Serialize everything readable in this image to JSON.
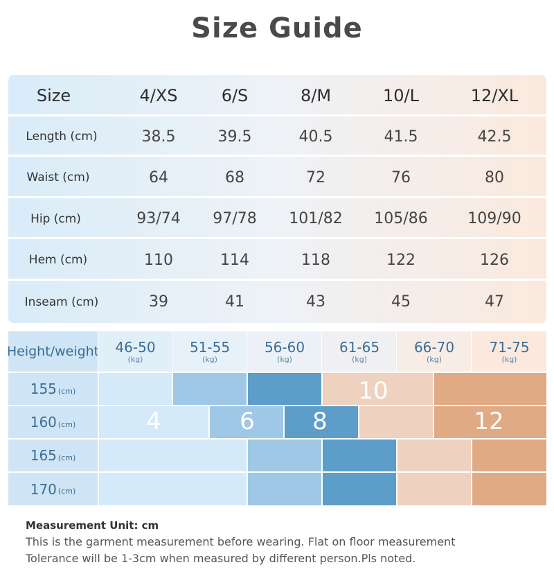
{
  "title": "Size Guide",
  "size_table": {
    "header": {
      "label": "Size",
      "sizes": [
        "4/XS",
        "6/S",
        "8/M",
        "10/L",
        "12/XL"
      ]
    },
    "rows": [
      {
        "label": "Length (cm)",
        "values": [
          "38.5",
          "39.5",
          "40.5",
          "41.5",
          "42.5"
        ]
      },
      {
        "label": "Waist (cm)",
        "values": [
          "64",
          "68",
          "72",
          "76",
          "80"
        ]
      },
      {
        "label": "Hip (cm)",
        "values": [
          "93/74",
          "97/78",
          "101/82",
          "105/86",
          "109/90"
        ]
      },
      {
        "label": "Hem (cm)",
        "values": [
          "110",
          "114",
          "118",
          "122",
          "126"
        ]
      },
      {
        "label": "Inseam (cm)",
        "values": [
          "39",
          "41",
          "43",
          "45",
          "47"
        ]
      }
    ]
  },
  "height_weight": {
    "header_label": "Height/weight",
    "weights": [
      {
        "range": "46-50",
        "unit": "(kg)"
      },
      {
        "range": "51-55",
        "unit": "(kg)"
      },
      {
        "range": "56-60",
        "unit": "(kg)"
      },
      {
        "range": "61-65",
        "unit": "(kg)"
      },
      {
        "range": "66-70",
        "unit": "(kg)"
      },
      {
        "range": "71-75",
        "unit": "(kg)"
      }
    ],
    "heights": [
      {
        "value": "155",
        "unit": "(cm)"
      },
      {
        "value": "160",
        "unit": "(cm)"
      },
      {
        "value": "165",
        "unit": "(cm)"
      },
      {
        "value": "170",
        "unit": "(cm)"
      }
    ],
    "zone_labels": [
      "4",
      "6",
      "8",
      "10",
      "12"
    ],
    "colors": {
      "size_4": "#d5eaf9",
      "size_6": "#9ec8e5",
      "size_8": "#5c9dc9",
      "size_10": "#efd1bf",
      "size_12": "#e0aa84"
    }
  },
  "notes": {
    "unit_line": "Measurement Unit: cm",
    "line1": "This is the garment measurement before wearing. Flat on floor measurement",
    "line2": "Tolerance will be 1-3cm when measured by different person.Pls noted."
  }
}
